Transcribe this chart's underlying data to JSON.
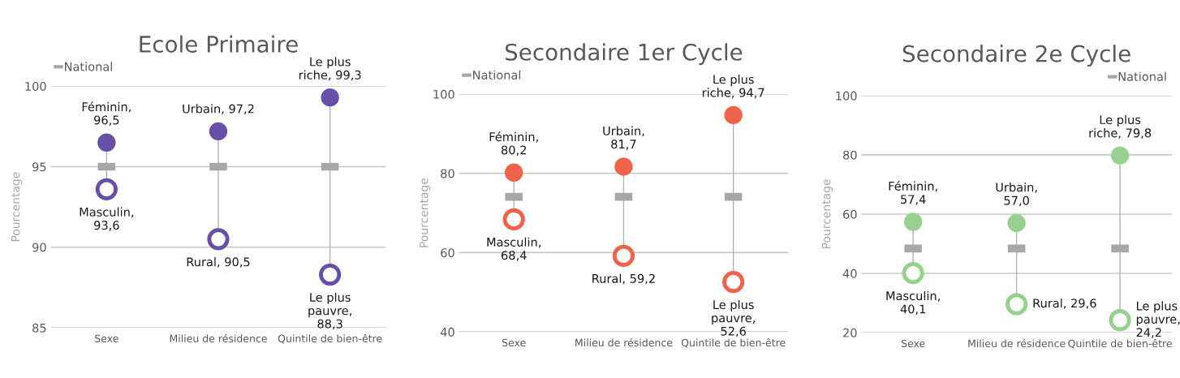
{
  "chart_data": [
    {
      "type": "scatter",
      "title": "Ecole Primaire",
      "ylabel": "Pourcentage",
      "categories": [
        "Sexe",
        "Milieu de résidence",
        "Quintile de bien-être"
      ],
      "ylim": [
        85,
        100
      ],
      "yticks": [
        85,
        90,
        95,
        100
      ],
      "grid": "y",
      "legend": "top left",
      "marker": "circle",
      "series": [
        {
          "name": "National",
          "color": "#a5a8ab",
          "marker": "square",
          "values": [
            95.0,
            95.0,
            95.0
          ]
        },
        {
          "color": "#6650a8",
          "values": [
            96.5,
            97.2,
            99.3
          ],
          "value_labels": [
            "Féminin,\n96,5",
            "Urbain, 97,2",
            "Le plus\nriche, 99,3"
          ]
        },
        {
          "color": "#6650a8",
          "values": [
            93.6,
            90.5,
            88.3
          ],
          "value_labels": [
            "Masculin,\n93,6",
            "Rural, 90,5",
            "Le plus\npauvre,\n88,3"
          ]
        }
      ]
    },
    {
      "type": "scatter",
      "title": "Secondaire 1er Cycle",
      "ylabel": "Pourcentage",
      "categories": [
        "Sexe",
        "Milieu de résidence",
        "Quintile de bien-être"
      ],
      "ylim": [
        40,
        100
      ],
      "yticks": [
        40,
        60,
        80,
        100
      ],
      "grid": "y",
      "legend": "top left",
      "marker": "circle",
      "series": [
        {
          "name": "National",
          "color": "#a5a8ab",
          "marker": "square",
          "values": [
            74.1,
            74.1,
            74.1
          ]
        },
        {
          "color": "#ef634a",
          "values": [
            80.2,
            81.7,
            94.7
          ],
          "value_labels": [
            "Féminin,\n80,2",
            "Urbain,\n81,7",
            "Le plus\nriche, 94,7"
          ]
        },
        {
          "color": "#ef634a",
          "values": [
            68.4,
            59.2,
            52.6
          ],
          "value_labels": [
            "Masculin,\n68,4",
            "Rural, 59,2",
            "Le plus\npauvre,\n52,6"
          ]
        }
      ]
    },
    {
      "type": "scatter",
      "title": "Secondaire 2e Cycle",
      "ylabel": "Pourcentage",
      "categories": [
        "Sexe",
        "Milieu de résidence",
        "Quintile de bien-être"
      ],
      "ylim": [
        20,
        100
      ],
      "yticks": [
        20,
        40,
        60,
        80,
        100
      ],
      "grid": "y",
      "legend": "top right",
      "marker": "circle",
      "series": [
        {
          "name": "National",
          "color": "#a5a8ab",
          "marker": "square",
          "values": [
            48.4,
            48.4,
            48.4
          ]
        },
        {
          "color": "#97d08f",
          "values": [
            57.4,
            57.0,
            79.8
          ],
          "value_labels": [
            "Féminin,\n57,4",
            "Urbain,\n57,0",
            "Le plus\nriche, 79,8"
          ]
        },
        {
          "color": "#97d08f",
          "values": [
            40.1,
            29.6,
            24.2
          ],
          "value_labels": [
            "Masculin,\n40,1",
            "Rural, 29,6",
            "Le plus\npauvre,\n24,2"
          ]
        }
      ]
    }
  ]
}
